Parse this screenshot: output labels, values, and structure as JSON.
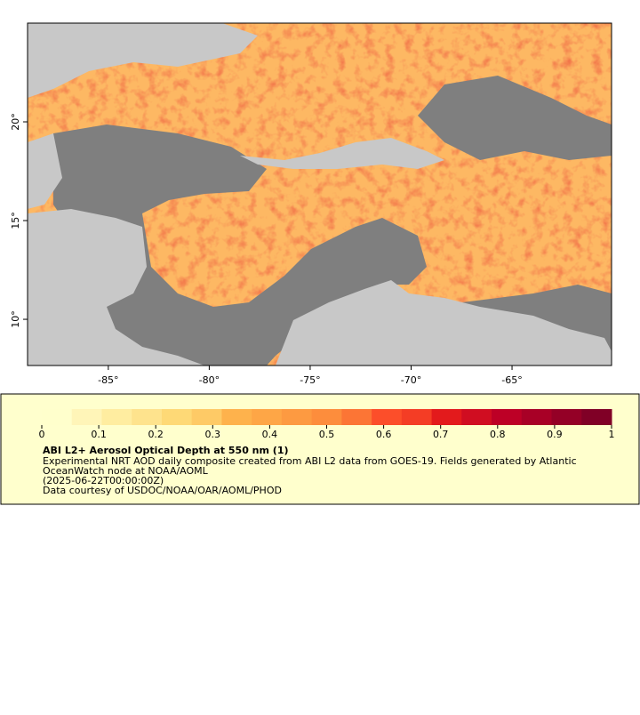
{
  "map": {
    "xlim": [
      -89,
      -60.07
    ],
    "ylim": [
      7.66,
      25
    ],
    "xticks": [
      {
        "value": -85,
        "label": "-85°"
      },
      {
        "value": -80,
        "label": "-80°"
      },
      {
        "value": -75,
        "label": "-75°"
      },
      {
        "value": -70,
        "label": "-70°"
      },
      {
        "value": -65,
        "label": "-65°"
      }
    ],
    "yticks": [
      {
        "value": 10,
        "label": "10°"
      },
      {
        "value": 15,
        "label": "15°"
      },
      {
        "value": 20,
        "label": "20°"
      }
    ]
  },
  "legend": {
    "colorbar": {
      "range": [
        0,
        1
      ],
      "ticks": [
        0,
        0.1,
        0.2,
        0.3,
        0.4,
        0.5,
        0.6,
        0.7,
        0.8,
        0.9,
        1
      ],
      "colors": [
        "#ffffcc",
        "#fff5b8",
        "#ffeda0",
        "#fee38d",
        "#fed976",
        "#feca66",
        "#feb24c",
        "#fea646",
        "#fd9a41",
        "#fd8d3c",
        "#fc7535",
        "#fc4e2a",
        "#f43d25",
        "#e31a1c",
        "#d00d21",
        "#bd0026",
        "#a80026",
        "#940026",
        "#800026"
      ]
    },
    "title": "ABI L2+ Aerosol Optical Depth at 550 nm (1)",
    "lines": [
      "Experimental NRT AOD daily composite created from ABI L2 data from GOES-19. Fields generated by Atlantic",
      "OceanWatch node at NOAA/AOML",
      "(2025-06-22T00:00:00Z)",
      "Data courtesy of USDOC/NOAA/OAR/AOML/PHOD"
    ]
  }
}
